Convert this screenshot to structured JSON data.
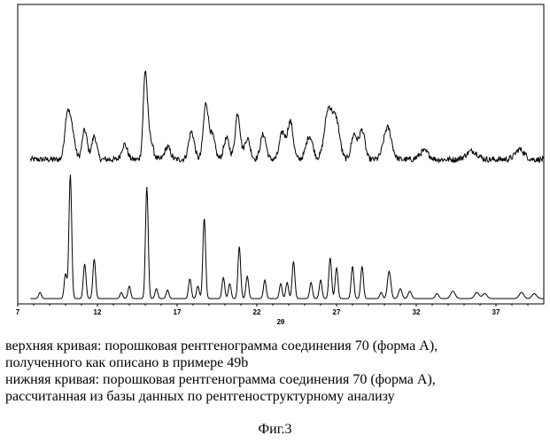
{
  "chart_data": {
    "type": "line",
    "xlabel": "2θ",
    "xlim": [
      7,
      40
    ],
    "x_ticks": [
      "7",
      "12",
      "17",
      "22",
      "27",
      "32",
      "37"
    ],
    "series": [
      {
        "id": "upper",
        "peaks": [
          {
            "x": 10.1,
            "h": 0.5,
            "w": 0.22
          },
          {
            "x": 10.4,
            "h": 0.35,
            "w": 0.25
          },
          {
            "x": 11.2,
            "h": 0.35,
            "w": 0.22
          },
          {
            "x": 11.8,
            "h": 0.28,
            "w": 0.22
          },
          {
            "x": 13.7,
            "h": 0.18,
            "w": 0.25
          },
          {
            "x": 15.0,
            "h": 1.0,
            "w": 0.18
          },
          {
            "x": 15.3,
            "h": 0.25,
            "w": 0.25
          },
          {
            "x": 16.4,
            "h": 0.15,
            "w": 0.25
          },
          {
            "x": 17.9,
            "h": 0.33,
            "w": 0.25
          },
          {
            "x": 18.8,
            "h": 0.65,
            "w": 0.22
          },
          {
            "x": 19.2,
            "h": 0.28,
            "w": 0.25
          },
          {
            "x": 20.1,
            "h": 0.25,
            "w": 0.25
          },
          {
            "x": 20.8,
            "h": 0.55,
            "w": 0.22
          },
          {
            "x": 21.4,
            "h": 0.25,
            "w": 0.25
          },
          {
            "x": 22.4,
            "h": 0.3,
            "w": 0.25
          },
          {
            "x": 23.6,
            "h": 0.32,
            "w": 0.25
          },
          {
            "x": 24.1,
            "h": 0.45,
            "w": 0.25
          },
          {
            "x": 25.3,
            "h": 0.28,
            "w": 0.3
          },
          {
            "x": 26.5,
            "h": 0.6,
            "w": 0.35
          },
          {
            "x": 27.0,
            "h": 0.42,
            "w": 0.3
          },
          {
            "x": 28.1,
            "h": 0.3,
            "w": 0.25
          },
          {
            "x": 28.6,
            "h": 0.35,
            "w": 0.25
          },
          {
            "x": 30.2,
            "h": 0.38,
            "w": 0.35
          },
          {
            "x": 32.5,
            "h": 0.1,
            "w": 0.4
          },
          {
            "x": 35.5,
            "h": 0.1,
            "w": 0.5
          },
          {
            "x": 38.5,
            "h": 0.12,
            "w": 0.4
          }
        ],
        "noise": 0.07
      },
      {
        "id": "lower",
        "peaks": [
          {
            "x": 8.4,
            "h": 0.05,
            "w": 0.12
          },
          {
            "x": 10.0,
            "h": 0.2,
            "w": 0.12
          },
          {
            "x": 10.3,
            "h": 1.0,
            "w": 0.12
          },
          {
            "x": 11.2,
            "h": 0.28,
            "w": 0.12
          },
          {
            "x": 11.8,
            "h": 0.32,
            "w": 0.12
          },
          {
            "x": 13.5,
            "h": 0.05,
            "w": 0.12
          },
          {
            "x": 14.0,
            "h": 0.1,
            "w": 0.12
          },
          {
            "x": 15.1,
            "h": 0.9,
            "w": 0.12
          },
          {
            "x": 15.7,
            "h": 0.08,
            "w": 0.12
          },
          {
            "x": 16.4,
            "h": 0.07,
            "w": 0.12
          },
          {
            "x": 17.8,
            "h": 0.16,
            "w": 0.12
          },
          {
            "x": 18.3,
            "h": 0.1,
            "w": 0.12
          },
          {
            "x": 18.7,
            "h": 0.65,
            "w": 0.12
          },
          {
            "x": 19.9,
            "h": 0.17,
            "w": 0.12
          },
          {
            "x": 20.3,
            "h": 0.12,
            "w": 0.12
          },
          {
            "x": 20.9,
            "h": 0.42,
            "w": 0.12
          },
          {
            "x": 21.4,
            "h": 0.18,
            "w": 0.12
          },
          {
            "x": 22.5,
            "h": 0.15,
            "w": 0.12
          },
          {
            "x": 23.5,
            "h": 0.12,
            "w": 0.12
          },
          {
            "x": 23.9,
            "h": 0.13,
            "w": 0.12
          },
          {
            "x": 24.3,
            "h": 0.3,
            "w": 0.12
          },
          {
            "x": 25.4,
            "h": 0.13,
            "w": 0.12
          },
          {
            "x": 26.0,
            "h": 0.15,
            "w": 0.12
          },
          {
            "x": 26.6,
            "h": 0.33,
            "w": 0.12
          },
          {
            "x": 27.0,
            "h": 0.25,
            "w": 0.12
          },
          {
            "x": 28.0,
            "h": 0.26,
            "w": 0.12
          },
          {
            "x": 28.6,
            "h": 0.26,
            "w": 0.12
          },
          {
            "x": 29.8,
            "h": 0.05,
            "w": 0.12
          },
          {
            "x": 30.3,
            "h": 0.22,
            "w": 0.15
          },
          {
            "x": 31.0,
            "h": 0.08,
            "w": 0.15
          },
          {
            "x": 31.6,
            "h": 0.06,
            "w": 0.15
          },
          {
            "x": 33.3,
            "h": 0.04,
            "w": 0.15
          },
          {
            "x": 34.3,
            "h": 0.06,
            "w": 0.2
          },
          {
            "x": 35.8,
            "h": 0.05,
            "w": 0.2
          },
          {
            "x": 36.3,
            "h": 0.04,
            "w": 0.2
          },
          {
            "x": 38.6,
            "h": 0.05,
            "w": 0.2
          },
          {
            "x": 39.4,
            "h": 0.04,
            "w": 0.2
          }
        ],
        "noise": 0
      }
    ]
  },
  "caption": {
    "line1": "верхняя кривая: порошковая рентгенограмма соединения 70 (форма А),",
    "line2": "полученного как описано в примере 49b",
    "line3": "нижняя кривая: порошковая рентгенограмма соединения 70 (форма А),",
    "line4": "рассчитанная из базы данных по рентгеноструктурному анализу"
  },
  "figure_label": "Фиг.3"
}
